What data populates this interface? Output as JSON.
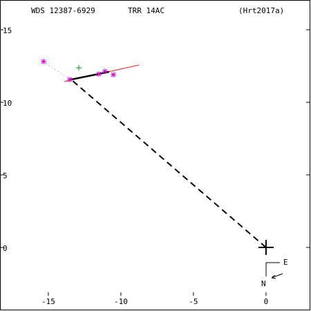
{
  "chart_data": {
    "type": "scatter",
    "labels": [
      "WDS 12387-6929",
      "TRR  14AC",
      "(Hrt2017a)"
    ],
    "xlim": [
      -18.33,
      3.1
    ],
    "ylim": [
      -4.38,
      17.05
    ],
    "xticks": [
      -15,
      -10,
      -5,
      0
    ],
    "yticks": [
      15,
      10,
      5,
      0
    ],
    "compass": [
      "E",
      "N"
    ],
    "series": [
      {
        "color": "#ff0000",
        "style": "solid",
        "marker": "none",
        "x": [
          -13.9,
          -8.76
        ],
        "y": [
          11.43,
          12.57
        ]
      },
      {
        "color": "#cc33cc",
        "style": "dotted",
        "marker": "none",
        "x": [
          -15.33,
          -13.52
        ],
        "y": [
          12.81,
          11.57
        ]
      },
      {
        "color": "#000000",
        "style": "dashed",
        "marker": "none",
        "x": [
          0,
          -13.43
        ],
        "y": [
          0,
          11.57
        ]
      },
      {
        "color": "#000000",
        "style": "thick",
        "marker": "none",
        "x": [
          -13.43,
          -10.81
        ],
        "y": [
          11.57,
          12.1
        ]
      },
      {
        "color": "#cc00cc",
        "style": "none",
        "marker": "asterisk",
        "x": [
          -15.33,
          -13.52,
          -11.52,
          -11.1,
          -10.52
        ],
        "y": [
          12.81,
          11.57,
          11.95,
          12.14,
          11.9
        ]
      },
      {
        "color": "#009900",
        "style": "none",
        "marker": "plus",
        "x": [
          -12.9
        ],
        "y": [
          12.38
        ]
      },
      {
        "color": "#000000",
        "style": "none",
        "marker": "bigplus",
        "x": [
          0
        ],
        "y": [
          0
        ]
      }
    ]
  }
}
